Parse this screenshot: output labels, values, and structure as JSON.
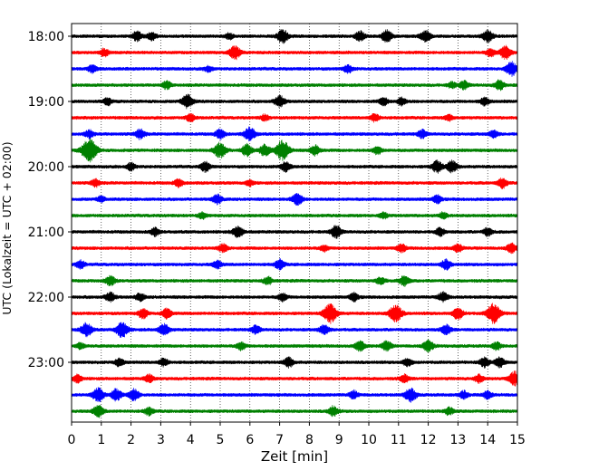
{
  "chart_data": {
    "type": "line",
    "title": "",
    "xlabel": "Zeit  [min]",
    "ylabel": "UTC (Lokalzeit = UTC + 02:00)",
    "xlim": [
      0,
      15
    ],
    "x_ticks": [
      0,
      1,
      2,
      3,
      4,
      5,
      6,
      7,
      8,
      9,
      10,
      11,
      12,
      13,
      14,
      15
    ],
    "y_tick_labels": [
      "18:00",
      "19:00",
      "20:00",
      "21:00",
      "22:00",
      "23:00"
    ],
    "grid": "vertical dotted lines at each minute",
    "row_interval_minutes": 15,
    "color_cycle": [
      "#000000",
      "#ff0000",
      "#0000ff",
      "#008000"
    ],
    "rows": [
      {
        "start": "18:00",
        "color": "#000000",
        "events": [
          {
            "t": 2.2,
            "a": 5
          },
          {
            "t": 2.7,
            "a": 4
          },
          {
            "t": 5.3,
            "a": 3
          },
          {
            "t": 7.1,
            "a": 7
          },
          {
            "t": 9.7,
            "a": 5
          },
          {
            "t": 10.6,
            "a": 6
          },
          {
            "t": 11.9,
            "a": 6
          },
          {
            "t": 14.0,
            "a": 6
          }
        ]
      },
      {
        "start": "18:15",
        "color": "#ff0000",
        "events": [
          {
            "t": 1.1,
            "a": 4
          },
          {
            "t": 5.5,
            "a": 7
          },
          {
            "t": 14.1,
            "a": 4
          },
          {
            "t": 14.6,
            "a": 7
          }
        ]
      },
      {
        "start": "18:30",
        "color": "#0000ff",
        "events": [
          {
            "t": 0.7,
            "a": 4
          },
          {
            "t": 4.6,
            "a": 3
          },
          {
            "t": 9.3,
            "a": 4
          },
          {
            "t": 14.8,
            "a": 7
          }
        ]
      },
      {
        "start": "18:45",
        "color": "#008000",
        "events": [
          {
            "t": 3.2,
            "a": 4
          },
          {
            "t": 12.8,
            "a": 3
          },
          {
            "t": 13.2,
            "a": 4
          },
          {
            "t": 14.4,
            "a": 5
          }
        ]
      },
      {
        "start": "19:00",
        "color": "#000000",
        "events": [
          {
            "t": 1.2,
            "a": 4
          },
          {
            "t": 3.9,
            "a": 7
          },
          {
            "t": 7.0,
            "a": 6
          },
          {
            "t": 10.5,
            "a": 4
          },
          {
            "t": 11.1,
            "a": 4
          },
          {
            "t": 13.9,
            "a": 4
          }
        ]
      },
      {
        "start": "19:15",
        "color": "#ff0000",
        "events": [
          {
            "t": 4.0,
            "a": 4
          },
          {
            "t": 6.5,
            "a": 3
          },
          {
            "t": 10.2,
            "a": 4
          },
          {
            "t": 12.7,
            "a": 3
          }
        ]
      },
      {
        "start": "19:30",
        "color": "#0000ff",
        "events": [
          {
            "t": 0.6,
            "a": 4
          },
          {
            "t": 2.3,
            "a": 5
          },
          {
            "t": 5.0,
            "a": 5
          },
          {
            "t": 6.0,
            "a": 7
          },
          {
            "t": 11.8,
            "a": 4
          },
          {
            "t": 14.2,
            "a": 4
          }
        ]
      },
      {
        "start": "19:45",
        "color": "#008000",
        "events": [
          {
            "t": 0.6,
            "a": 12
          },
          {
            "t": 5.0,
            "a": 8
          },
          {
            "t": 5.9,
            "a": 6
          },
          {
            "t": 6.5,
            "a": 6
          },
          {
            "t": 7.1,
            "a": 10
          },
          {
            "t": 8.2,
            "a": 5
          },
          {
            "t": 10.3,
            "a": 4
          }
        ]
      },
      {
        "start": "20:00",
        "color": "#000000",
        "events": [
          {
            "t": 2.0,
            "a": 4
          },
          {
            "t": 4.5,
            "a": 5
          },
          {
            "t": 7.2,
            "a": 5
          },
          {
            "t": 12.3,
            "a": 6
          },
          {
            "t": 12.8,
            "a": 6
          }
        ]
      },
      {
        "start": "20:15",
        "color": "#ff0000",
        "events": [
          {
            "t": 0.8,
            "a": 4
          },
          {
            "t": 3.6,
            "a": 4
          },
          {
            "t": 6.0,
            "a": 3
          },
          {
            "t": 14.5,
            "a": 5
          }
        ]
      },
      {
        "start": "20:30",
        "color": "#0000ff",
        "events": [
          {
            "t": 1.0,
            "a": 3
          },
          {
            "t": 4.9,
            "a": 5
          },
          {
            "t": 7.6,
            "a": 6
          },
          {
            "t": 12.3,
            "a": 4
          }
        ]
      },
      {
        "start": "20:45",
        "color": "#008000",
        "events": [
          {
            "t": 4.4,
            "a": 3
          },
          {
            "t": 10.5,
            "a": 3
          },
          {
            "t": 12.5,
            "a": 3
          }
        ]
      },
      {
        "start": "21:00",
        "color": "#000000",
        "events": [
          {
            "t": 2.8,
            "a": 4
          },
          {
            "t": 5.6,
            "a": 6
          },
          {
            "t": 8.9,
            "a": 6
          },
          {
            "t": 12.4,
            "a": 4
          },
          {
            "t": 14.0,
            "a": 4
          }
        ]
      },
      {
        "start": "21:15",
        "color": "#ff0000",
        "events": [
          {
            "t": 5.1,
            "a": 4
          },
          {
            "t": 8.5,
            "a": 3
          },
          {
            "t": 11.1,
            "a": 4
          },
          {
            "t": 13.0,
            "a": 4
          },
          {
            "t": 14.8,
            "a": 5
          }
        ]
      },
      {
        "start": "21:30",
        "color": "#0000ff",
        "events": [
          {
            "t": 0.3,
            "a": 4
          },
          {
            "t": 4.9,
            "a": 4
          },
          {
            "t": 7.0,
            "a": 5
          },
          {
            "t": 12.6,
            "a": 5
          }
        ]
      },
      {
        "start": "21:45",
        "color": "#008000",
        "events": [
          {
            "t": 1.3,
            "a": 5
          },
          {
            "t": 6.6,
            "a": 4
          },
          {
            "t": 10.4,
            "a": 4
          },
          {
            "t": 11.2,
            "a": 5
          }
        ]
      },
      {
        "start": "22:00",
        "color": "#000000",
        "events": [
          {
            "t": 1.3,
            "a": 5
          },
          {
            "t": 2.3,
            "a": 4
          },
          {
            "t": 7.1,
            "a": 4
          },
          {
            "t": 9.5,
            "a": 4
          },
          {
            "t": 12.5,
            "a": 5
          }
        ]
      },
      {
        "start": "22:15",
        "color": "#ff0000",
        "events": [
          {
            "t": 2.4,
            "a": 5
          },
          {
            "t": 3.2,
            "a": 5
          },
          {
            "t": 8.7,
            "a": 10
          },
          {
            "t": 10.9,
            "a": 9
          },
          {
            "t": 13.0,
            "a": 6
          },
          {
            "t": 14.2,
            "a": 10
          }
        ]
      },
      {
        "start": "22:30",
        "color": "#0000ff",
        "events": [
          {
            "t": 0.5,
            "a": 7
          },
          {
            "t": 1.7,
            "a": 8
          },
          {
            "t": 3.1,
            "a": 6
          },
          {
            "t": 6.2,
            "a": 4
          },
          {
            "t": 8.5,
            "a": 5
          },
          {
            "t": 12.6,
            "a": 5
          }
        ]
      },
      {
        "start": "22:45",
        "color": "#008000",
        "events": [
          {
            "t": 0.3,
            "a": 3
          },
          {
            "t": 5.7,
            "a": 4
          },
          {
            "t": 9.7,
            "a": 5
          },
          {
            "t": 10.6,
            "a": 5
          },
          {
            "t": 12.0,
            "a": 6
          },
          {
            "t": 14.3,
            "a": 4
          }
        ]
      },
      {
        "start": "23:00",
        "color": "#000000",
        "events": [
          {
            "t": 1.6,
            "a": 4
          },
          {
            "t": 3.1,
            "a": 4
          },
          {
            "t": 7.3,
            "a": 5
          },
          {
            "t": 11.3,
            "a": 4
          },
          {
            "t": 13.9,
            "a": 5
          },
          {
            "t": 14.4,
            "a": 5
          }
        ]
      },
      {
        "start": "23:15",
        "color": "#ff0000",
        "events": [
          {
            "t": 0.2,
            "a": 4
          },
          {
            "t": 2.6,
            "a": 4
          },
          {
            "t": 11.2,
            "a": 4
          },
          {
            "t": 13.7,
            "a": 4
          },
          {
            "t": 14.9,
            "a": 7
          }
        ]
      },
      {
        "start": "23:30",
        "color": "#0000ff",
        "events": [
          {
            "t": 0.9,
            "a": 7
          },
          {
            "t": 1.5,
            "a": 6
          },
          {
            "t": 2.1,
            "a": 6
          },
          {
            "t": 9.5,
            "a": 4
          },
          {
            "t": 11.4,
            "a": 7
          },
          {
            "t": 13.2,
            "a": 4
          },
          {
            "t": 14.0,
            "a": 4
          }
        ]
      },
      {
        "start": "23:45",
        "color": "#008000",
        "events": [
          {
            "t": 0.9,
            "a": 6
          },
          {
            "t": 2.6,
            "a": 4
          },
          {
            "t": 8.8,
            "a": 5
          },
          {
            "t": 12.7,
            "a": 4
          }
        ]
      }
    ]
  }
}
